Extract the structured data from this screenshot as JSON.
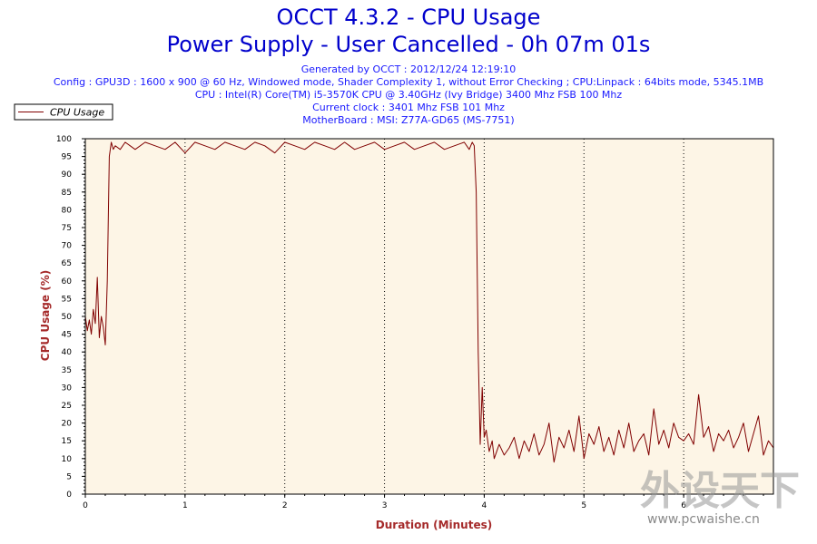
{
  "header": {
    "title_line1": "OCCT 4.3.2 - CPU Usage",
    "title_line2": "Power Supply - User Cancelled - 0h 07m 01s",
    "info_lines": [
      "Generated by OCCT : 2012/12/24 12:19:10",
      "Config : GPU3D : 1600 x 900 @ 60 Hz, Windowed mode, Shader Complexity 1, without Error Checking ; CPU:Linpack : 64bits mode, 5345.1MB",
      "CPU : Intel(R) Core(TM) i5-3570K CPU @ 3.40GHz (Ivy Bridge) 3400 Mhz FSB 100 Mhz",
      "Current clock : 3401 Mhz FSB 101 Mhz",
      "MotherBoard : MSI: Z77A-GD65 (MS-7751)"
    ]
  },
  "watermark": {
    "logo_text": "外设天下",
    "url": "www.pcwaishe.cn"
  },
  "colors": {
    "title": "#0000cc",
    "info": "#1a1aff",
    "series": "#800000",
    "plot_background": "#fdf5e6",
    "axis_title": "#a52a2a"
  },
  "chart_data": {
    "type": "line",
    "title": "OCCT 4.3.2 - CPU Usage",
    "subtitle": "Power Supply - User Cancelled - 0h 07m 01s",
    "xlabel": "Duration (Minutes)",
    "ylabel": "CPU Usage (%)",
    "xlim": [
      0,
      6.9
    ],
    "ylim": [
      0,
      100
    ],
    "x_ticks": [
      "0",
      "1",
      "2",
      "3",
      "4",
      "5",
      "6"
    ],
    "y_ticks": [
      "0",
      "5",
      "10",
      "15",
      "20",
      "25",
      "30",
      "35",
      "40",
      "45",
      "50",
      "55",
      "60",
      "65",
      "70",
      "75",
      "80",
      "85",
      "90",
      "95",
      "100"
    ],
    "grid": "vertical dotted at each minute",
    "legend_position": "top-left",
    "series": [
      {
        "name": "CPU Usage",
        "x": [
          0,
          0.02,
          0.04,
          0.06,
          0.08,
          0.1,
          0.12,
          0.14,
          0.16,
          0.18,
          0.2,
          0.22,
          0.24,
          0.26,
          0.28,
          0.3,
          0.35,
          0.4,
          0.45,
          0.5,
          0.6,
          0.7,
          0.8,
          0.9,
          1.0,
          1.1,
          1.2,
          1.3,
          1.4,
          1.5,
          1.6,
          1.7,
          1.8,
          1.9,
          2.0,
          2.1,
          2.2,
          2.3,
          2.4,
          2.5,
          2.6,
          2.7,
          2.8,
          2.9,
          3.0,
          3.1,
          3.2,
          3.3,
          3.4,
          3.5,
          3.6,
          3.7,
          3.8,
          3.85,
          3.88,
          3.9,
          3.92,
          3.94,
          3.96,
          3.98,
          4.0,
          4.02,
          4.05,
          4.08,
          4.1,
          4.15,
          4.2,
          4.25,
          4.3,
          4.35,
          4.4,
          4.45,
          4.5,
          4.55,
          4.6,
          4.65,
          4.7,
          4.75,
          4.8,
          4.85,
          4.9,
          4.95,
          5.0,
          5.05,
          5.1,
          5.15,
          5.2,
          5.25,
          5.3,
          5.35,
          5.4,
          5.45,
          5.5,
          5.55,
          5.6,
          5.65,
          5.7,
          5.75,
          5.8,
          5.85,
          5.9,
          5.95,
          6.0,
          6.05,
          6.1,
          6.15,
          6.2,
          6.25,
          6.3,
          6.35,
          6.4,
          6.45,
          6.5,
          6.55,
          6.6,
          6.65,
          6.7,
          6.75,
          6.8,
          6.85,
          6.9
        ],
        "values": [
          50,
          46,
          49,
          45,
          52,
          48,
          61,
          44,
          50,
          47,
          42,
          60,
          95,
          99,
          97,
          98,
          97,
          99,
          98,
          97,
          99,
          98,
          97,
          99,
          96,
          99,
          98,
          97,
          99,
          98,
          97,
          99,
          98,
          96,
          99,
          98,
          97,
          99,
          98,
          97,
          99,
          97,
          98,
          99,
          97,
          98,
          99,
          97,
          98,
          99,
          97,
          98,
          99,
          97,
          99,
          98,
          85,
          40,
          14,
          30,
          16,
          18,
          12,
          15,
          10,
          14,
          11,
          13,
          16,
          10,
          15,
          12,
          17,
          11,
          14,
          20,
          9,
          16,
          13,
          18,
          12,
          22,
          10,
          17,
          14,
          19,
          12,
          16,
          11,
          18,
          13,
          20,
          12,
          15,
          17,
          11,
          24,
          14,
          18,
          13,
          20,
          16,
          15,
          17,
          14,
          28,
          16,
          19,
          12,
          17,
          15,
          18,
          13,
          16,
          20,
          12,
          17,
          22,
          11,
          15,
          13
        ]
      }
    ]
  }
}
